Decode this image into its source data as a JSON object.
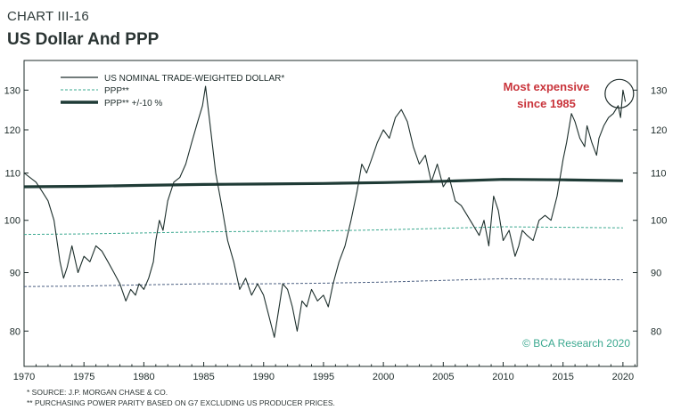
{
  "header": {
    "label": "CHART III-16",
    "title": "US Dollar And PPP"
  },
  "footnotes": [
    "* SOURCE: J.P. MORGAN CHASE & CO.",
    "** PURCHASING POWER PARITY BASED ON G7 EXCLUDING US PRODUCER PRICES."
  ],
  "chart_data": {
    "type": "line",
    "title": "US Dollar And PPP",
    "xlim": [
      1970,
      2021.2
    ],
    "ylim": [
      74.5,
      138
    ],
    "y_scale": "log",
    "grid": false,
    "legend_position": "top-left",
    "x_ticks": [
      1970,
      1975,
      1980,
      1985,
      1990,
      1995,
      2000,
      2005,
      2010,
      2015,
      2020
    ],
    "y_ticks": [
      80,
      90,
      100,
      110,
      120,
      130
    ],
    "colors": {
      "dollar": "#1d2f2c",
      "ppp": "#3aa88f",
      "band": "#4a5e80",
      "ppp_thick": "#1f3b36",
      "annotation": "#c9343b"
    },
    "legend": [
      {
        "key": "dollar",
        "label": "US NOMINAL TRADE-WEIGHTED DOLLAR*"
      },
      {
        "key": "ppp",
        "label": "PPP**"
      },
      {
        "key": "ppp_thick",
        "label": "PPP** +/-10 %"
      }
    ],
    "annotation": {
      "text_line1": "Most expensive",
      "text_line2": "since 1985",
      "x": 2019.7,
      "y": 130
    },
    "watermark": "© BCA Research 2020",
    "series": [
      {
        "key": "dollar",
        "name": "US NOMINAL TRADE-WEIGHTED DOLLAR*",
        "x": [
          1970.0,
          1971.0,
          1971.5,
          1972.0,
          1972.5,
          1973.0,
          1973.3,
          1973.6,
          1974.0,
          1974.5,
          1975.0,
          1975.5,
          1976.0,
          1976.5,
          1977.0,
          1977.5,
          1978.0,
          1978.5,
          1978.9,
          1979.3,
          1979.6,
          1980.0,
          1980.4,
          1980.8,
          1981.0,
          1981.3,
          1981.6,
          1982.0,
          1982.5,
          1983.0,
          1983.5,
          1984.0,
          1984.5,
          1984.9,
          1985.15,
          1985.5,
          1986.0,
          1986.5,
          1987.0,
          1987.5,
          1988.0,
          1988.5,
          1989.0,
          1989.5,
          1990.0,
          1990.5,
          1990.9,
          1991.3,
          1991.6,
          1992.0,
          1992.4,
          1992.8,
          1993.2,
          1993.6,
          1994.0,
          1994.5,
          1995.0,
          1995.4,
          1995.8,
          1996.3,
          1996.8,
          1997.3,
          1997.8,
          1998.2,
          1998.6,
          1999.0,
          1999.5,
          2000.0,
          2000.5,
          2001.0,
          2001.5,
          2002.0,
          2002.5,
          2003.0,
          2003.5,
          2004.0,
          2004.5,
          2005.0,
          2005.5,
          2006.0,
          2006.5,
          2007.0,
          2007.5,
          2008.0,
          2008.4,
          2008.8,
          2009.2,
          2009.6,
          2010.0,
          2010.5,
          2011.0,
          2011.3,
          2011.6,
          2012.0,
          2012.5,
          2013.0,
          2013.5,
          2014.0,
          2014.5,
          2015.0,
          2015.3,
          2015.7,
          2016.0,
          2016.4,
          2016.8,
          2017.0,
          2017.4,
          2017.8,
          2018.0,
          2018.4,
          2018.8,
          2019.2,
          2019.6,
          2019.8,
          2020.0,
          2020.2
        ],
        "values": [
          110,
          108,
          106,
          104,
          100,
          92,
          89,
          91,
          95,
          90,
          93,
          92,
          95,
          94,
          92,
          90,
          88,
          85,
          87,
          86,
          88,
          87,
          89,
          92,
          96,
          100,
          98,
          104,
          108,
          109,
          112,
          117,
          122,
          126,
          131,
          122,
          110,
          103,
          96,
          92,
          87,
          89,
          86,
          88,
          86,
          82,
          79,
          84,
          88,
          87,
          84,
          80,
          85,
          84,
          87,
          85,
          86,
          84,
          88,
          92,
          95,
          100,
          106,
          112,
          110,
          113,
          117,
          120,
          118,
          123,
          125,
          122,
          116,
          112,
          114,
          108,
          112,
          107,
          109,
          104,
          103,
          101,
          99,
          97,
          100,
          95,
          105,
          102,
          96,
          98,
          93,
          95,
          98,
          97,
          96,
          100,
          101,
          100,
          105,
          113,
          117,
          124,
          122,
          118,
          116,
          121,
          117,
          114,
          118,
          121,
          123,
          124,
          126,
          123,
          130,
          127
        ]
      },
      {
        "key": "ppp",
        "name": "PPP**",
        "x": [
          1970,
          1975,
          1980,
          1985,
          1990,
          1995,
          2000,
          2005,
          2010,
          2015,
          2020
        ],
        "values": [
          97.2,
          97.3,
          97.5,
          97.7,
          97.8,
          97.9,
          98.1,
          98.4,
          98.7,
          98.6,
          98.5
        ]
      },
      {
        "key": "ppp_upper",
        "name": "PPP** +/-10 %",
        "x": [
          1970,
          1975,
          1980,
          1985,
          1990,
          1995,
          2000,
          2005,
          2010,
          2015,
          2020
        ],
        "values": [
          107,
          107.1,
          107.3,
          107.5,
          107.6,
          107.7,
          107.9,
          108.2,
          108.6,
          108.5,
          108.3
        ]
      },
      {
        "key": "ppp_lower",
        "name": "PPP** +/-10 %",
        "x": [
          1970,
          1975,
          1980,
          1985,
          1990,
          1995,
          2000,
          2005,
          2010,
          2015,
          2020
        ],
        "values": [
          87.5,
          87.6,
          87.8,
          88.0,
          88.0,
          88.1,
          88.3,
          88.6,
          88.9,
          88.8,
          88.7
        ]
      }
    ]
  }
}
